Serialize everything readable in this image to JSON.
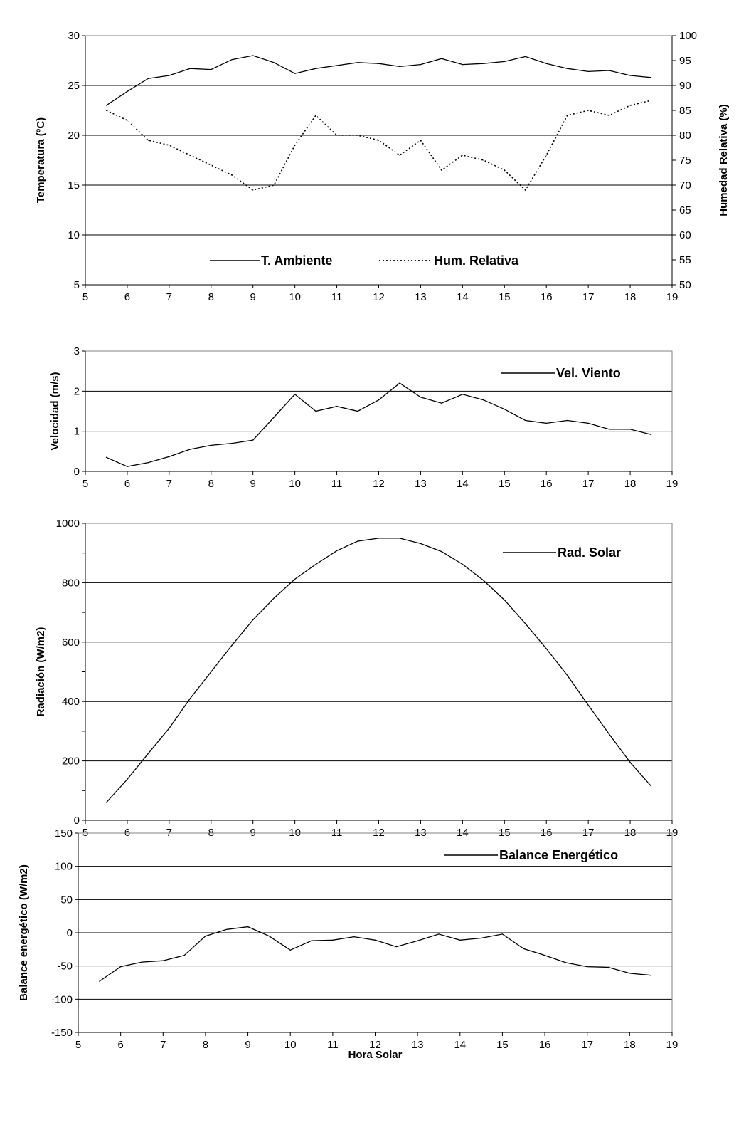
{
  "chart_data": [
    {
      "type": "line",
      "title": "",
      "xlabel": "",
      "ylabel": "Temperatura (ºC)",
      "y2label": "Humedad Relativa (%)",
      "xlim": [
        5,
        19
      ],
      "xticks": [
        5,
        6,
        7,
        8,
        9,
        10,
        11,
        12,
        13,
        14,
        15,
        16,
        17,
        18,
        19
      ],
      "ylim": [
        5,
        30
      ],
      "yticks": [
        5,
        10,
        15,
        20,
        25,
        30
      ],
      "y2lim": [
        50,
        100
      ],
      "y2ticks": [
        50,
        55,
        60,
        65,
        70,
        75,
        80,
        85,
        90,
        95,
        100
      ],
      "grid_y": [
        10,
        15,
        20,
        25
      ],
      "legend_position": "bottom-center",
      "x": [
        5.5,
        6,
        6.5,
        7,
        7.5,
        8,
        8.5,
        9,
        9.5,
        10,
        10.5,
        11,
        11.5,
        12,
        12.5,
        13,
        13.5,
        14,
        14.5,
        15,
        15.5,
        16,
        16.5,
        17,
        17.5,
        18,
        18.5
      ],
      "series": [
        {
          "name": "T. Ambiente",
          "axis": "left",
          "style": "solid",
          "color": "#000000",
          "values": [
            23.0,
            24.4,
            25.7,
            26.0,
            26.7,
            26.6,
            27.6,
            28.0,
            27.3,
            26.2,
            26.7,
            27.0,
            27.3,
            27.2,
            26.9,
            27.1,
            27.7,
            27.1,
            27.2,
            27.4,
            27.9,
            27.2,
            26.7,
            26.4,
            26.5,
            26.0,
            25.8
          ]
        },
        {
          "name": "Hum. Relativa",
          "axis": "right",
          "style": "dotted",
          "color": "#000000",
          "values": [
            85,
            83,
            79,
            78,
            76,
            74,
            72,
            69,
            70,
            78,
            84,
            80,
            80,
            79,
            76,
            79,
            73,
            76,
            75,
            73,
            69,
            76,
            84,
            85,
            84,
            86,
            87
          ]
        }
      ]
    },
    {
      "type": "line",
      "title": "",
      "xlabel": "",
      "ylabel": "Velocidad (m/s)",
      "xlim": [
        5,
        19
      ],
      "xticks": [
        5,
        6,
        7,
        8,
        9,
        10,
        11,
        12,
        13,
        14,
        15,
        16,
        17,
        18,
        19
      ],
      "ylim": [
        0,
        3
      ],
      "yticks": [
        0,
        1,
        2,
        3
      ],
      "grid_y": [
        1,
        2
      ],
      "legend_position": "top-right",
      "x": [
        5.5,
        6,
        6.5,
        7,
        7.5,
        8,
        8.5,
        9,
        9.5,
        10,
        10.5,
        11,
        11.5,
        12,
        12.5,
        13,
        13.5,
        14,
        14.5,
        15,
        15.5,
        16,
        16.5,
        17,
        17.5,
        18,
        18.5
      ],
      "series": [
        {
          "name": "Vel. Viento",
          "style": "solid",
          "color": "#000000",
          "values": [
            0.35,
            0.12,
            0.22,
            0.37,
            0.55,
            0.65,
            0.7,
            0.78,
            1.35,
            1.92,
            1.5,
            1.62,
            1.5,
            1.78,
            2.2,
            1.85,
            1.7,
            1.92,
            1.78,
            1.55,
            1.27,
            1.2,
            1.27,
            1.2,
            1.05,
            1.05,
            0.92
          ]
        }
      ]
    },
    {
      "type": "line",
      "title": "",
      "xlabel": "",
      "ylabel": "Radiación (W/m2)",
      "xlim": [
        5,
        19
      ],
      "xticks": [
        5,
        6,
        7,
        8,
        9,
        10,
        11,
        12,
        13,
        14,
        15,
        16,
        17,
        18,
        19
      ],
      "ylim": [
        0,
        1000
      ],
      "yticks": [
        0,
        200,
        400,
        600,
        800,
        1000
      ],
      "grid_y": [
        200,
        400,
        600,
        800
      ],
      "legend_position": "top-right",
      "x": [
        5.5,
        6,
        6.5,
        7,
        7.5,
        8,
        8.5,
        9,
        9.5,
        10,
        10.5,
        11,
        11.5,
        12,
        12.5,
        13,
        13.5,
        14,
        14.5,
        15,
        15.5,
        16,
        16.5,
        17,
        17.5,
        18,
        18.5
      ],
      "series": [
        {
          "name": "Rad. Solar",
          "style": "solid",
          "color": "#000000",
          "values": [
            60,
            138,
            225,
            310,
            410,
            500,
            590,
            675,
            748,
            812,
            862,
            908,
            940,
            950,
            950,
            932,
            905,
            862,
            808,
            742,
            662,
            578,
            488,
            388,
            290,
            195,
            115
          ]
        }
      ]
    },
    {
      "type": "line",
      "title": "",
      "xlabel": "Hora Solar",
      "ylabel": "Balance energético (W/m2)",
      "xlim": [
        5,
        19
      ],
      "xticks": [
        5,
        6,
        7,
        8,
        9,
        10,
        11,
        12,
        13,
        14,
        15,
        16,
        17,
        18,
        19
      ],
      "ylim": [
        -150,
        150
      ],
      "yticks": [
        -150,
        -100,
        -50,
        0,
        50,
        100,
        150
      ],
      "grid_y": [
        -100,
        -50,
        0,
        50,
        100
      ],
      "legend_position": "top-right",
      "x": [
        5.5,
        6,
        6.5,
        7,
        7.5,
        8,
        8.5,
        9,
        9.5,
        10,
        10.5,
        11,
        11.5,
        12,
        12.5,
        13,
        13.5,
        14,
        14.5,
        15,
        15.5,
        16,
        16.5,
        17,
        17.5,
        18,
        18.5
      ],
      "series": [
        {
          "name": "Balance Energético",
          "style": "solid",
          "color": "#000000",
          "values": [
            -73,
            -51,
            -44,
            -42,
            -34,
            -5,
            5,
            9,
            -5,
            -26,
            -12,
            -11,
            -6,
            -11,
            -21,
            -12,
            -2,
            -11,
            -8,
            -2,
            -24,
            -34,
            -45,
            -51,
            -52,
            -61,
            -64
          ]
        }
      ]
    }
  ]
}
